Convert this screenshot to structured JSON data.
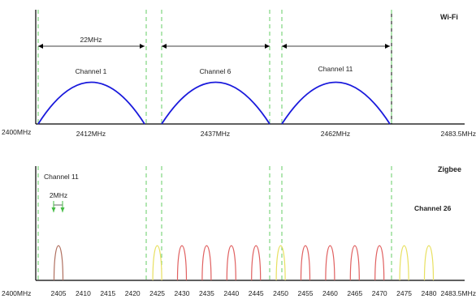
{
  "wifi": {
    "title": "Wi-Fi",
    "channel_width_label": "22MHz",
    "band_start_label": "2400MHz",
    "band_end_label": "2483.5MHz",
    "channels": [
      {
        "label": "Channel 1",
        "center_label": "2412MHz",
        "center_mhz": 2412
      },
      {
        "label": "Channel 6",
        "center_label": "2437MHz",
        "center_mhz": 2437
      },
      {
        "label": "Channel 11",
        "center_label": "2462MHz",
        "center_mhz": 2462
      }
    ],
    "curve_color": "#1a1adc",
    "guide_color": "#66cc66"
  },
  "zigbee": {
    "title": "Zigbee",
    "highlight_channel_label": "Channel 11",
    "channel_width_label": "2MHz",
    "last_channel_label": "Channel 26",
    "band_start_label": "2400MHz",
    "band_end_label": "2483.5MHz",
    "tick_labels": [
      "2405",
      "2410",
      "2415",
      "2420",
      "2425",
      "2430",
      "2435",
      "2440",
      "2445",
      "2450",
      "2455",
      "2460",
      "2465",
      "2470",
      "2475",
      "2480"
    ],
    "channel_status": [
      "overlap",
      "clear",
      "clear",
      "clear",
      "free",
      "overlap",
      "overlap",
      "overlap",
      "overlap",
      "free",
      "overlap",
      "overlap",
      "overlap",
      "overlap",
      "free",
      "free"
    ],
    "colors": {
      "overlap": "#e06060",
      "free": "#e8e060",
      "highlight": "#b07060"
    }
  }
}
